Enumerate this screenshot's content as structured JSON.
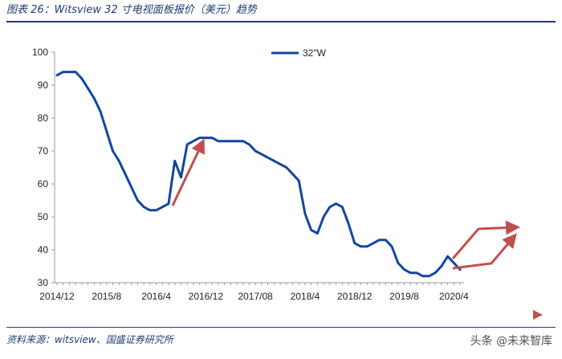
{
  "header": {
    "title": "图表 26：Witsview 32 寸电视面板报价（美元）趋势"
  },
  "footer": {
    "source": "资料来源：witsview、国盛证券研究所",
    "watermark": "头条 @未来智库"
  },
  "chart_data": {
    "type": "line",
    "title": "",
    "xlabel": "",
    "ylabel": "",
    "ylim": [
      30,
      100
    ],
    "yticks": [
      30,
      40,
      50,
      60,
      70,
      80,
      90,
      100
    ],
    "xticks": [
      "2014/12",
      "2015/8",
      "2016/4",
      "2016/12",
      "2017/08",
      "2018/4",
      "2018/12",
      "2019/8",
      "2020/4"
    ],
    "x_start": "2014/12",
    "x_step": "1 month",
    "legend": "top-center",
    "grid": false,
    "colors": {
      "line": "#1246a0",
      "arrows": "#c0504d",
      "axis": "#9a9a9a"
    },
    "series": [
      {
        "name": "32\"W",
        "values": [
          93,
          94,
          94,
          94,
          92,
          89,
          86,
          82,
          76,
          70,
          67,
          63,
          59,
          55,
          53,
          52,
          52,
          53,
          54,
          67,
          62,
          72,
          73,
          74,
          74,
          74,
          73,
          73,
          73,
          73,
          73,
          72,
          70,
          69,
          68,
          67,
          66,
          65,
          63,
          61,
          51,
          46,
          45,
          50,
          53,
          54,
          53,
          48,
          42,
          41,
          41,
          42,
          43,
          43,
          41,
          36,
          34,
          33,
          33,
          32,
          32,
          33,
          35,
          38,
          36,
          34
        ]
      }
    ]
  }
}
